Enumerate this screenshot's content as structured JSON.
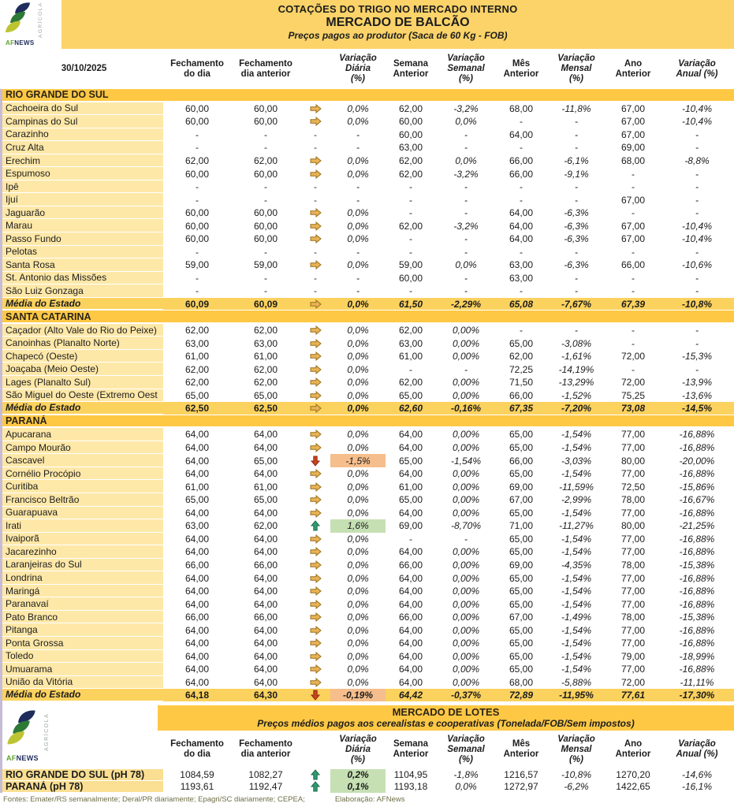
{
  "header": {
    "title": "COTAÇÕES DO TRIGO NO MERCADO INTERNO",
    "subtitle": "MERCADO DE BALCÃO",
    "note": "Preços pagos ao produtor (Saca de 60 Kg - FOB)",
    "date": "30/10/2025"
  },
  "logo": {
    "af": "AF",
    "news": "NEWS",
    "vertical": "AGRÍCOLA"
  },
  "columns": [
    {
      "label": "Fechamento\ndo dia",
      "italic": false
    },
    {
      "label": "Fechamento\ndia anterior",
      "italic": false
    },
    {
      "label": "",
      "italic": false
    },
    {
      "label": "Variação\nDiária\n(%)",
      "italic": true
    },
    {
      "label": "Semana\nAnterior",
      "italic": false
    },
    {
      "label": "Variação\nSemanal\n(%)",
      "italic": true
    },
    {
      "label": "Mês\nAnterior",
      "italic": false
    },
    {
      "label": "Variação\nMensal\n(%)",
      "italic": true
    },
    {
      "label": "Ano\nAnterior",
      "italic": false
    },
    {
      "label": "Variação\nAnual (%)",
      "italic": true
    }
  ],
  "sections": [
    {
      "name": "RIO GRANDE DO SUL",
      "rows": [
        {
          "name": "Cachoeira do Sul",
          "v": [
            "60,00",
            "60,00",
            "flat",
            "0,0%",
            "62,00",
            "-3,2%",
            "68,00",
            "-11,8%",
            "67,00",
            "-10,4%"
          ],
          "hl": null
        },
        {
          "name": "Campinas do Sul",
          "v": [
            "60,00",
            "60,00",
            "flat",
            "0,0%",
            "60,00",
            "0,0%",
            "-",
            "-",
            "67,00",
            "-10,4%"
          ],
          "hl": null
        },
        {
          "name": "Carazinho",
          "v": [
            "-",
            "-",
            "none",
            "-",
            "60,00",
            "-",
            "64,00",
            "-",
            "67,00",
            "-"
          ],
          "hl": null
        },
        {
          "name": "Cruz Alta",
          "v": [
            "-",
            "-",
            "none",
            "-",
            "63,00",
            "-",
            "-",
            "-",
            "69,00",
            "-"
          ],
          "hl": null
        },
        {
          "name": "Erechim",
          "v": [
            "62,00",
            "62,00",
            "flat",
            "0,0%",
            "62,00",
            "0,0%",
            "66,00",
            "-6,1%",
            "68,00",
            "-8,8%"
          ],
          "hl": null
        },
        {
          "name": "Espumoso",
          "v": [
            "60,00",
            "60,00",
            "flat",
            "0,0%",
            "62,00",
            "-3,2%",
            "66,00",
            "-9,1%",
            "-",
            "-"
          ],
          "hl": null
        },
        {
          "name": "Ipê",
          "v": [
            "-",
            "-",
            "none",
            "-",
            "-",
            "-",
            "-",
            "-",
            "-",
            "-"
          ],
          "hl": null
        },
        {
          "name": "Ijuí",
          "v": [
            "-",
            "-",
            "none",
            "-",
            "-",
            "-",
            "-",
            "-",
            "67,00",
            "-"
          ],
          "hl": null
        },
        {
          "name": "Jaguarão",
          "v": [
            "60,00",
            "60,00",
            "flat",
            "0,0%",
            "-",
            "-",
            "64,00",
            "-6,3%",
            "-",
            "-"
          ],
          "hl": null
        },
        {
          "name": "Marau",
          "v": [
            "60,00",
            "60,00",
            "flat",
            "0,0%",
            "62,00",
            "-3,2%",
            "64,00",
            "-6,3%",
            "67,00",
            "-10,4%"
          ],
          "hl": null
        },
        {
          "name": "Passo Fundo",
          "v": [
            "60,00",
            "60,00",
            "flat",
            "0,0%",
            "-",
            "-",
            "64,00",
            "-6,3%",
            "67,00",
            "-10,4%"
          ],
          "hl": null
        },
        {
          "name": "Pelotas",
          "v": [
            "-",
            "-",
            "none",
            "-",
            "-",
            "-",
            "-",
            "-",
            "-",
            "-"
          ],
          "hl": null
        },
        {
          "name": "Santa Rosa",
          "v": [
            "59,00",
            "59,00",
            "flat",
            "0,0%",
            "59,00",
            "0,0%",
            "63,00",
            "-6,3%",
            "66,00",
            "-10,6%"
          ],
          "hl": null
        },
        {
          "name": "St. Antonio das Missões",
          "v": [
            "-",
            "-",
            "none",
            "-",
            "60,00",
            "-",
            "63,00",
            "-",
            "-",
            "-"
          ],
          "hl": null
        },
        {
          "name": "São Luiz Gonzaga",
          "v": [
            "-",
            "-",
            "none",
            "-",
            "-",
            "-",
            "-",
            "-",
            "-",
            "-"
          ],
          "hl": null
        }
      ],
      "media": {
        "name": "Média do Estado",
        "v": [
          "60,09",
          "60,09",
          "flat",
          "0,0%",
          "61,50",
          "-2,29%",
          "65,08",
          "-7,67%",
          "67,39",
          "-10,8%"
        ],
        "hl": null
      }
    },
    {
      "name": "SANTA CATARINA",
      "rows": [
        {
          "name": "Caçador (Alto Vale do Rio do Peixe)",
          "v": [
            "62,00",
            "62,00",
            "flat",
            "0,0%",
            "62,00",
            "0,00%",
            "-",
            "-",
            "-",
            "-"
          ],
          "hl": null
        },
        {
          "name": "Canoinhas (Planalto Norte)",
          "v": [
            "63,00",
            "63,00",
            "flat",
            "0,0%",
            "63,00",
            "0,00%",
            "65,00",
            "-3,08%",
            "-",
            "-"
          ],
          "hl": null
        },
        {
          "name": "Chapecó (Oeste)",
          "v": [
            "61,00",
            "61,00",
            "flat",
            "0,0%",
            "61,00",
            "0,00%",
            "62,00",
            "-1,61%",
            "72,00",
            "-15,3%"
          ],
          "hl": null
        },
        {
          "name": "Joaçaba (Meio Oeste)",
          "v": [
            "62,00",
            "62,00",
            "flat",
            "0,0%",
            "-",
            "-",
            "72,25",
            "-14,19%",
            "-",
            "-"
          ],
          "hl": null
        },
        {
          "name": "Lages (Planalto Sul)",
          "v": [
            "62,00",
            "62,00",
            "flat",
            "0,0%",
            "62,00",
            "0,00%",
            "71,50",
            "-13,29%",
            "72,00",
            "-13,9%"
          ],
          "hl": null
        },
        {
          "name": "São Miguel do Oeste (Extremo Oest",
          "v": [
            "65,00",
            "65,00",
            "flat",
            "0,0%",
            "65,00",
            "0,00%",
            "66,00",
            "-1,52%",
            "75,25",
            "-13,6%"
          ],
          "hl": null
        }
      ],
      "media": {
        "name": "Média do Estado",
        "v": [
          "62,50",
          "62,50",
          "flat",
          "0,0%",
          "62,60",
          "-0,16%",
          "67,35",
          "-7,20%",
          "73,08",
          "-14,5%"
        ],
        "hl": null
      }
    },
    {
      "name": "PARANÁ",
      "rows": [
        {
          "name": "Apucarana",
          "v": [
            "64,00",
            "64,00",
            "flat",
            "0,0%",
            "64,00",
            "0,00%",
            "65,00",
            "-1,54%",
            "77,00",
            "-16,88%"
          ],
          "hl": null
        },
        {
          "name": "Campo Mourão",
          "v": [
            "64,00",
            "64,00",
            "flat",
            "0,0%",
            "64,00",
            "0,00%",
            "65,00",
            "-1,54%",
            "77,00",
            "-16,88%"
          ],
          "hl": null
        },
        {
          "name": "Cascavel",
          "v": [
            "64,00",
            "65,00",
            "down",
            "-1,5%",
            "65,00",
            "-1,54%",
            "66,00",
            "-3,03%",
            "80,00",
            "-20,00%"
          ],
          "hl": "down"
        },
        {
          "name": "Cornélio Procópio",
          "v": [
            "64,00",
            "64,00",
            "flat",
            "0,0%",
            "64,00",
            "0,00%",
            "65,00",
            "-1,54%",
            "77,00",
            "-16,88%"
          ],
          "hl": null
        },
        {
          "name": "Curitiba",
          "v": [
            "61,00",
            "61,00",
            "flat",
            "0,0%",
            "61,00",
            "0,00%",
            "69,00",
            "-11,59%",
            "72,50",
            "-15,86%"
          ],
          "hl": null
        },
        {
          "name": "Francisco Beltrão",
          "v": [
            "65,00",
            "65,00",
            "flat",
            "0,0%",
            "65,00",
            "0,00%",
            "67,00",
            "-2,99%",
            "78,00",
            "-16,67%"
          ],
          "hl": null
        },
        {
          "name": "Guarapuava",
          "v": [
            "64,00",
            "64,00",
            "flat",
            "0,0%",
            "64,00",
            "0,00%",
            "65,00",
            "-1,54%",
            "77,00",
            "-16,88%"
          ],
          "hl": null
        },
        {
          "name": "Irati",
          "v": [
            "63,00",
            "62,00",
            "up",
            "1,6%",
            "69,00",
            "-8,70%",
            "71,00",
            "-11,27%",
            "80,00",
            "-21,25%"
          ],
          "hl": "up"
        },
        {
          "name": "Ivaiporã",
          "v": [
            "64,00",
            "64,00",
            "flat",
            "0,0%",
            "-",
            "-",
            "65,00",
            "-1,54%",
            "77,00",
            "-16,88%"
          ],
          "hl": null
        },
        {
          "name": "Jacarezinho",
          "v": [
            "64,00",
            "64,00",
            "flat",
            "0,0%",
            "64,00",
            "0,00%",
            "65,00",
            "-1,54%",
            "77,00",
            "-16,88%"
          ],
          "hl": null
        },
        {
          "name": "Laranjeiras do Sul",
          "v": [
            "66,00",
            "66,00",
            "flat",
            "0,0%",
            "66,00",
            "0,00%",
            "69,00",
            "-4,35%",
            "78,00",
            "-15,38%"
          ],
          "hl": null
        },
        {
          "name": "Londrina",
          "v": [
            "64,00",
            "64,00",
            "flat",
            "0,0%",
            "64,00",
            "0,00%",
            "65,00",
            "-1,54%",
            "77,00",
            "-16,88%"
          ],
          "hl": null
        },
        {
          "name": "Maringá",
          "v": [
            "64,00",
            "64,00",
            "flat",
            "0,0%",
            "64,00",
            "0,00%",
            "65,00",
            "-1,54%",
            "77,00",
            "-16,88%"
          ],
          "hl": null
        },
        {
          "name": "Paranavaí",
          "v": [
            "64,00",
            "64,00",
            "flat",
            "0,0%",
            "64,00",
            "0,00%",
            "65,00",
            "-1,54%",
            "77,00",
            "-16,88%"
          ],
          "hl": null
        },
        {
          "name": "Pato Branco",
          "v": [
            "66,00",
            "66,00",
            "flat",
            "0,0%",
            "66,00",
            "0,00%",
            "67,00",
            "-1,49%",
            "78,00",
            "-15,38%"
          ],
          "hl": null
        },
        {
          "name": "Pitanga",
          "v": [
            "64,00",
            "64,00",
            "flat",
            "0,0%",
            "64,00",
            "0,00%",
            "65,00",
            "-1,54%",
            "77,00",
            "-16,88%"
          ],
          "hl": null
        },
        {
          "name": "Ponta Grossa",
          "v": [
            "64,00",
            "64,00",
            "flat",
            "0,0%",
            "64,00",
            "0,00%",
            "65,00",
            "-1,54%",
            "77,00",
            "-16,88%"
          ],
          "hl": null
        },
        {
          "name": "Toledo",
          "v": [
            "64,00",
            "64,00",
            "flat",
            "0,0%",
            "64,00",
            "0,00%",
            "65,00",
            "-1,54%",
            "79,00",
            "-18,99%"
          ],
          "hl": null
        },
        {
          "name": "Umuarama",
          "v": [
            "64,00",
            "64,00",
            "flat",
            "0,0%",
            "64,00",
            "0,00%",
            "65,00",
            "-1,54%",
            "77,00",
            "-16,88%"
          ],
          "hl": null
        },
        {
          "name": "União da Vitória",
          "v": [
            "64,00",
            "64,00",
            "flat",
            "0,0%",
            "64,00",
            "0,00%",
            "68,00",
            "-5,88%",
            "72,00",
            "-11,11%"
          ],
          "hl": null
        }
      ],
      "media": {
        "name": "Média do Estado",
        "v": [
          "64,18",
          "64,30",
          "down",
          "-0,19%",
          "64,42",
          "-0,37%",
          "72,89",
          "-11,95%",
          "77,61",
          "-17,30%"
        ],
        "hl": "down"
      }
    }
  ],
  "lotes": {
    "title": "MERCADO DE LOTES",
    "subtitle": "Preços médios pagos aos cerealistas e cooperativas (Tonelada/FOB/Sem impostos)",
    "rows": [
      {
        "name": "RIO GRANDE DO SUL (pH 78)",
        "v": [
          "1084,59",
          "1082,27",
          "up",
          "0,2%",
          "1104,95",
          "-1,8%",
          "1216,57",
          "-10,8%",
          "1270,20",
          "-14,6%"
        ],
        "hl": "up"
      },
      {
        "name": "PARANÁ (pH 78)",
        "v": [
          "1193,61",
          "1192,47",
          "up",
          "0,1%",
          "1193,18",
          "0,0%",
          "1272,97",
          "-6,2%",
          "1422,65",
          "-16,1%"
        ],
        "hl": "up"
      }
    ]
  },
  "footer": {
    "sources": "Fontes: Emater/RS semanalmente; Deral/PR diariamente; Epagri/SC diariamente; CEPEA;",
    "elaboration": "Elaboração: AFNews"
  },
  "colors": {
    "band-yellow": "#FBD369",
    "band-gold": "#FEC845",
    "name-col": "#FEE8A8",
    "media-row": "#FBD25E",
    "lotes-label": "#FADF92",
    "hl-up": "#C6E0B4",
    "hl-down": "#F5BE8C",
    "arrow-flat": "#E9B356",
    "arrow-flat-edge": "#9A6F1B",
    "arrow-up": "#2E9B72",
    "arrow-up-edge": "#1F6B4E",
    "arrow-down": "#C8431F",
    "arrow-down-edge": "#8F2E13",
    "left-rule": "#C6BCD6",
    "footer-text": "#6E6E46"
  }
}
